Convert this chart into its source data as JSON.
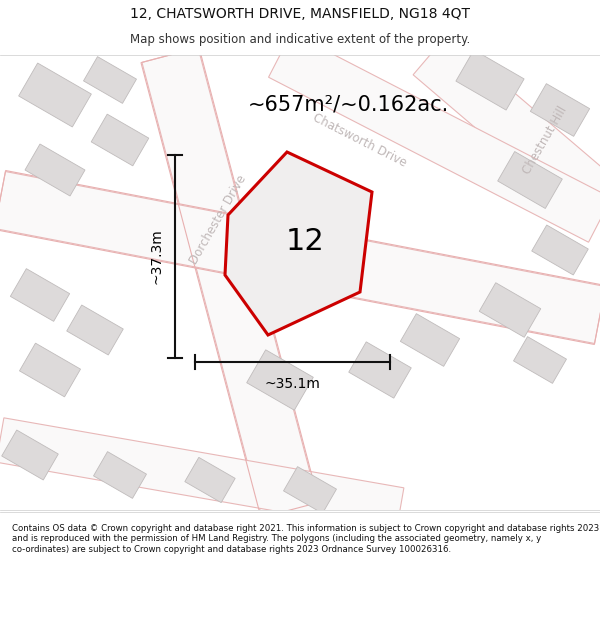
{
  "title": "12, CHATSWORTH DRIVE, MANSFIELD, NG18 4QT",
  "subtitle": "Map shows position and indicative extent of the property.",
  "footer": "Contains OS data © Crown copyright and database right 2021. This information is subject to Crown copyright and database rights 2023 and is reproduced with the permission of HM Land Registry. The polygons (including the associated geometry, namely x, y co-ordinates) are subject to Crown copyright and database rights 2023 Ordnance Survey 100026316.",
  "area_label": "~657m²/~0.162ac.",
  "property_number": "12",
  "dim_width": "~35.1m",
  "dim_height": "~37.3m",
  "map_bg": "#eeecec",
  "road_color": "#faf9f9",
  "road_border_color": "#e8b8b8",
  "building_color": "#dddada",
  "building_border": "#c0bcbc",
  "plot_color": "#cc0000",
  "plot_fill": "#f0eeee",
  "road_label_color": "#c0b8b8",
  "title_color": "#111111",
  "subtitle_color": "#333333",
  "footer_color": "#111111",
  "dim_line_color": "#111111"
}
